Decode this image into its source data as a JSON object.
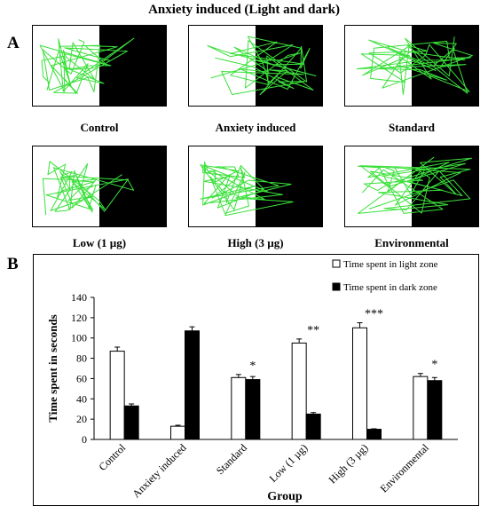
{
  "figure": {
    "title": "Anxiety induced (Light and dark)",
    "panel_a_letter": "A",
    "panel_b_letter": "B"
  },
  "arenas": [
    {
      "label": "Control",
      "trace": "light-heavy"
    },
    {
      "label": "Anxiety induced",
      "trace": "dark-heavy"
    },
    {
      "label": "Standard",
      "trace": "balanced"
    },
    {
      "label": "Low (1 µg)",
      "trace": "light-heavy"
    },
    {
      "label": "High (3 µg)",
      "trace": "light-heavy"
    },
    {
      "label": "Environmental",
      "trace": "balanced"
    }
  ],
  "colors": {
    "trace": "#3be03b",
    "light_bar": "#ffffff",
    "dark_bar": "#000000"
  },
  "chart_data": {
    "type": "bar",
    "categories": [
      "Control",
      "Anxiety  induced",
      "Standard",
      "Low (1 µg)",
      "High (3 µg)",
      "Environmental"
    ],
    "series": [
      {
        "name": "Time spent in light zone",
        "color": "#ffffff",
        "values": [
          87,
          13,
          61,
          95,
          110,
          62
        ],
        "errors": [
          4,
          1,
          3,
          4,
          5,
          3
        ]
      },
      {
        "name": "Time spent in dark zone",
        "color": "#000000",
        "values": [
          33,
          107,
          59,
          25,
          10,
          58
        ],
        "errors": [
          2,
          4,
          3,
          1.5,
          0.5,
          3
        ]
      }
    ],
    "significance": [
      "",
      "",
      "*",
      "**",
      "***",
      "*"
    ],
    "xlabel": "Group",
    "ylabel": "Time spent in seconds",
    "ylim": [
      0,
      140
    ],
    "yticks": [
      0,
      20,
      40,
      60,
      80,
      100,
      120,
      140
    ],
    "legend_position": "top-right",
    "grid": false
  }
}
